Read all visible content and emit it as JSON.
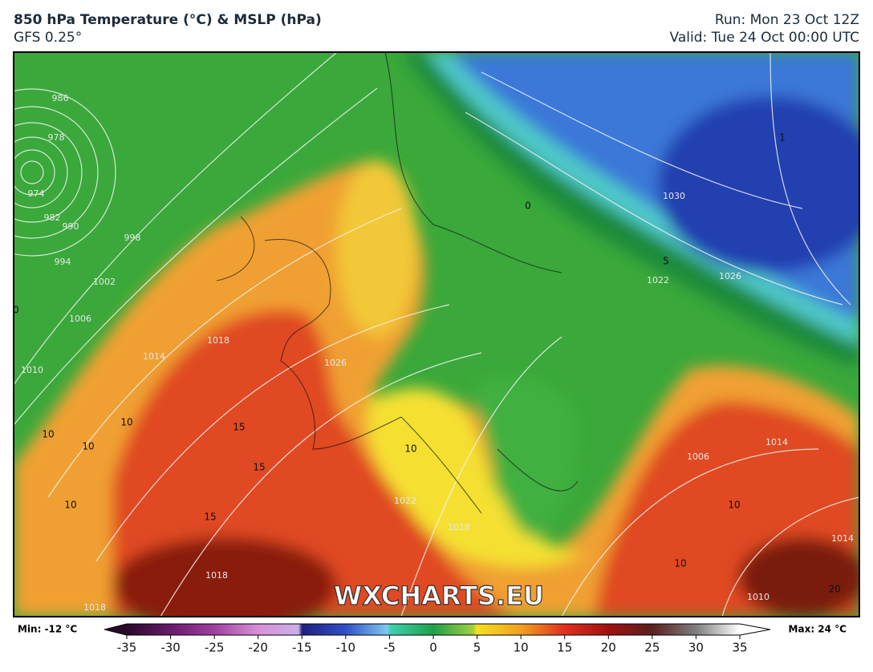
{
  "header": {
    "title": "850 hPa Temperature (°C) & MSLP (hPa)",
    "subtitle": "GFS 0.25°",
    "run": "Run: Mon 23 Oct 12Z",
    "valid": "Valid: Tue 24 Oct 00:00 UTC"
  },
  "map": {
    "watermark": "WXCHARTS.EU",
    "isobar_labels": [
      "986",
      "978",
      "974",
      "982",
      "990",
      "994",
      "998",
      "1002",
      "1006",
      "1010",
      "1014",
      "1018",
      "1026",
      "1022",
      "1018",
      "1030",
      "1026",
      "1022",
      "1018",
      "1018",
      "1010",
      "1006",
      "1014",
      "1014"
    ],
    "isotherm_labels": [
      "10",
      "10",
      "10",
      "10",
      "15",
      "15",
      "15",
      "10",
      "0",
      "5",
      "10",
      "10",
      "20",
      "0",
      "1"
    ]
  },
  "colorbar": {
    "min_label": "Min: -12 °C",
    "max_label": "Max: 24 °C",
    "ticks": [
      -35,
      -30,
      -25,
      -20,
      -15,
      -10,
      -5,
      0,
      5,
      10,
      15,
      20,
      25,
      30,
      35
    ]
  }
}
